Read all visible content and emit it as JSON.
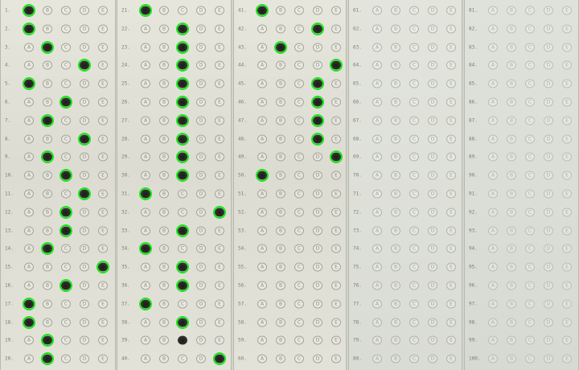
{
  "sheet": {
    "choice_letters": [
      "A",
      "B",
      "C",
      "D",
      "E"
    ],
    "columns": [
      {
        "style": "normal",
        "start_question": 1,
        "answers": [
          "A",
          "A",
          "B",
          "D",
          "A",
          "C",
          "B",
          "D",
          "B",
          "C",
          "D",
          "C",
          "C",
          "B",
          "E",
          "C",
          "A",
          "A",
          "B",
          "B"
        ],
        "detected": [
          true,
          true,
          true,
          true,
          true,
          true,
          true,
          true,
          true,
          true,
          true,
          true,
          true,
          true,
          true,
          true,
          true,
          true,
          true,
          true
        ]
      },
      {
        "style": "normal",
        "start_question": 21,
        "answers": [
          "A",
          "C",
          "C",
          "C",
          "C",
          "C",
          "C",
          "C",
          "C",
          "C",
          "A",
          "E",
          "C",
          "A",
          "C",
          "C",
          "A",
          "C",
          "C",
          "E"
        ],
        "detected": [
          true,
          true,
          true,
          true,
          true,
          true,
          true,
          true,
          true,
          true,
          true,
          true,
          true,
          true,
          true,
          true,
          true,
          true,
          false,
          true
        ]
      },
      {
        "style": "normal",
        "start_question": 41,
        "answers": [
          "A",
          "D",
          "B",
          "E",
          "D",
          "D",
          "D",
          "D",
          "E",
          "A"
        ],
        "detected": [
          true,
          true,
          true,
          true,
          true,
          true,
          true,
          true,
          true,
          true
        ]
      },
      {
        "style": "faded",
        "start_question": 61,
        "answers": [],
        "detected": []
      },
      {
        "style": "faint",
        "start_question": 81,
        "answers": [],
        "detected": []
      }
    ]
  }
}
